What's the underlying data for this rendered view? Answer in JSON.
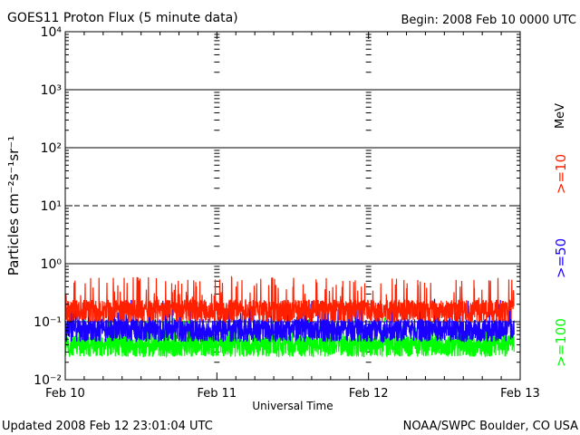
{
  "header": {
    "title": "GOES11 Proton Flux (5 minute data)",
    "begin": "Begin: 2008 Feb 10 0000 UTC"
  },
  "footer": {
    "updated": "Updated 2008 Feb 12 23:01:04 UTC",
    "source": "NOAA/SWPC Boulder, CO USA"
  },
  "chart_data": {
    "type": "line",
    "title": "GOES11 Proton Flux (5 minute data)",
    "xlabel": "Universal Time",
    "ylabel": "Particles cm⁻²s⁻¹sr⁻¹",
    "y_scale": "log",
    "ylim": [
      0.01,
      10000
    ],
    "y_tick_labels": [
      "10⁻²",
      "10⁻¹",
      "10⁰",
      "10¹",
      "10²",
      "10³",
      "10⁴"
    ],
    "x_tick_labels": [
      "Feb 10",
      "Feb 11",
      "Feb 12",
      "Feb 13"
    ],
    "xlim_days": [
      0,
      3
    ],
    "data_extent_days": [
      0,
      2.96
    ],
    "grid": true,
    "legend_unit": "MeV",
    "series": [
      {
        "name": ">=10",
        "color": "#ff2000",
        "typical": 0.16,
        "min": 0.1,
        "max": 0.6
      },
      {
        "name": ">=50",
        "color": "#1a00ff",
        "typical": 0.075,
        "min": 0.045,
        "max": 0.25
      },
      {
        "name": ">=100",
        "color": "#00ff00",
        "typical": 0.04,
        "min": 0.025,
        "max": 0.12
      }
    ]
  }
}
